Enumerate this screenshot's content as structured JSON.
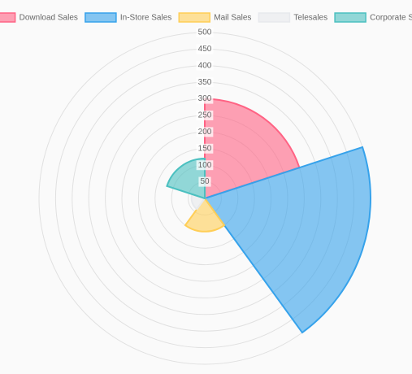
{
  "chart_data": {
    "type": "polarArea",
    "categories": [
      "Download Sales",
      "In-Store Sales",
      "Mail Sales",
      "Telesales",
      "Corporate Sales"
    ],
    "values": [
      300,
      500,
      100,
      40,
      120
    ],
    "colors": [
      "rgba(255,99,132,0.6)",
      "rgba(54,162,235,0.6)",
      "rgba(255,206,86,0.6)",
      "rgba(231,233,237,0.6)",
      "rgba(75,192,192,0.6)"
    ],
    "border_colors": [
      "#ff6384",
      "#36a2eb",
      "#ffce56",
      "#e7e9ed",
      "#4bc0c0"
    ],
    "rlim": [
      0,
      500
    ],
    "rticks": [
      50,
      100,
      150,
      200,
      250,
      300,
      350,
      400,
      450,
      500
    ],
    "grid": true
  }
}
